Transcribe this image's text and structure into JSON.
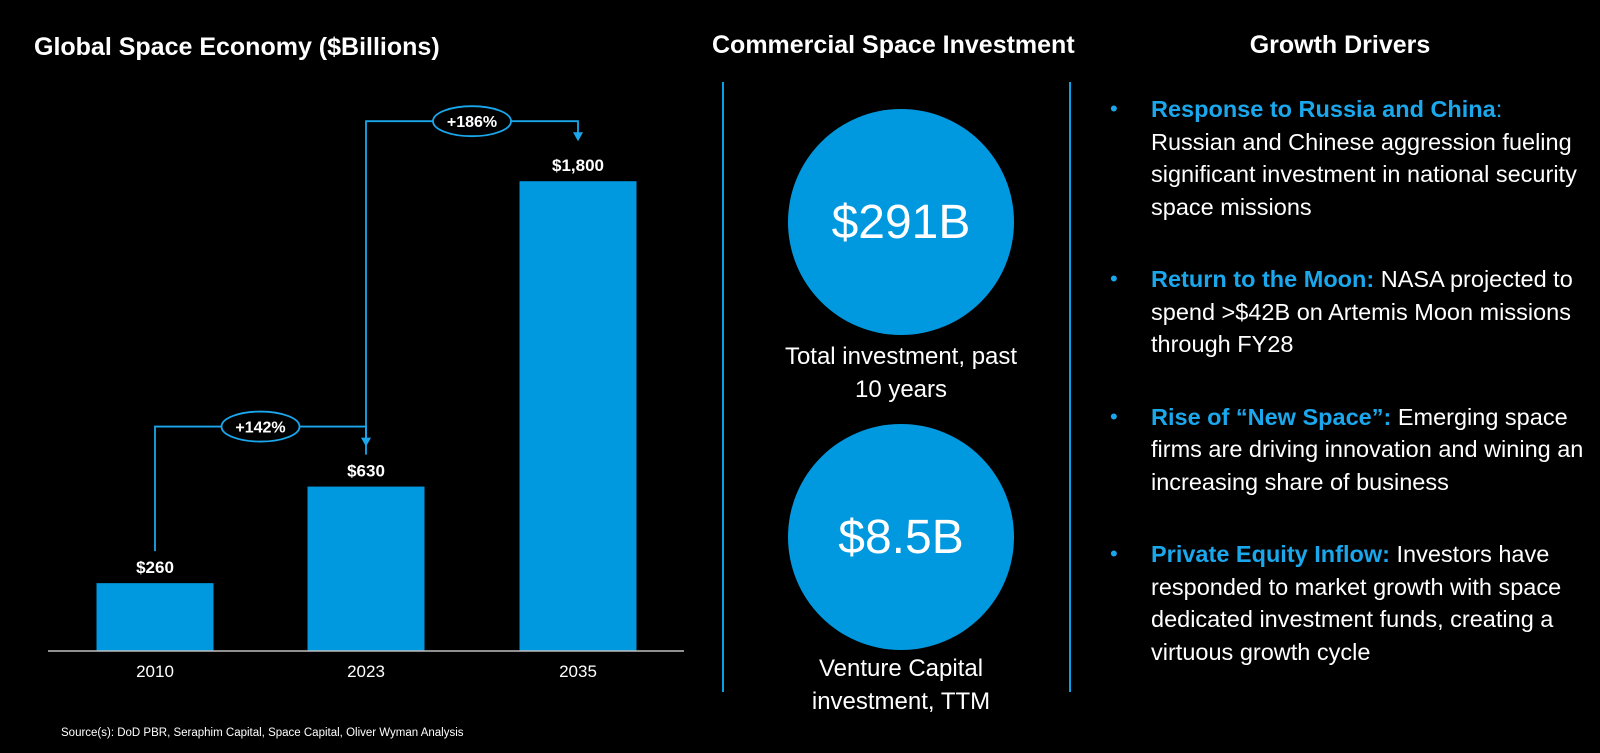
{
  "chart_title": "Global Space Economy ($Billions)",
  "investment_title": "Commercial Space Investment",
  "drivers_title": "Growth Drivers",
  "chart_data": {
    "type": "bar",
    "title": "Global Space Economy ($Billions)",
    "categories": [
      "2010",
      "2023",
      "2035"
    ],
    "values": [
      260,
      630,
      1800
    ],
    "value_labels": [
      "$260",
      "$630",
      "$1,800"
    ],
    "ylim": [
      0,
      2000
    ],
    "grid": false,
    "bar_color": "#0099e0",
    "annotations": [
      {
        "from": "2010",
        "to": "2023",
        "label": "+142%"
      },
      {
        "from": "2023",
        "to": "2035",
        "label": "+186%"
      }
    ]
  },
  "investment": [
    {
      "value": "$291B",
      "caption_line1": "Total investment, past",
      "caption_line2": "10 years"
    },
    {
      "value": "$8.5B",
      "caption_line1": "Venture Capital",
      "caption_line2": "investment, TTM"
    }
  ],
  "drivers": [
    {
      "lead": "Response to Russia and China",
      "colon": ":",
      "text": " Russian and Chinese aggression fueling significant investment in national security space missions"
    },
    {
      "lead": "Return to the Moon:",
      "colon": "",
      "text": " NASA projected to spend >$42B on Artemis Moon missions through FY28"
    },
    {
      "lead": "Rise of “New Space”:",
      "colon": "",
      "text": " Emerging space firms are driving innovation and wining an increasing share of business"
    },
    {
      "lead": "Private Equity Inflow:",
      "colon": "",
      "text": " Investors have responded to market growth with space dedicated investment funds, creating a virtuous growth cycle"
    }
  ],
  "bullet_char": "•",
  "source": "Source(s): DoD PBR, Seraphim Capital, Space Capital, Oliver Wyman Analysis",
  "colors": {
    "accent": "#0099e0",
    "accent_text": "#1aa7ec",
    "background": "#000000"
  }
}
